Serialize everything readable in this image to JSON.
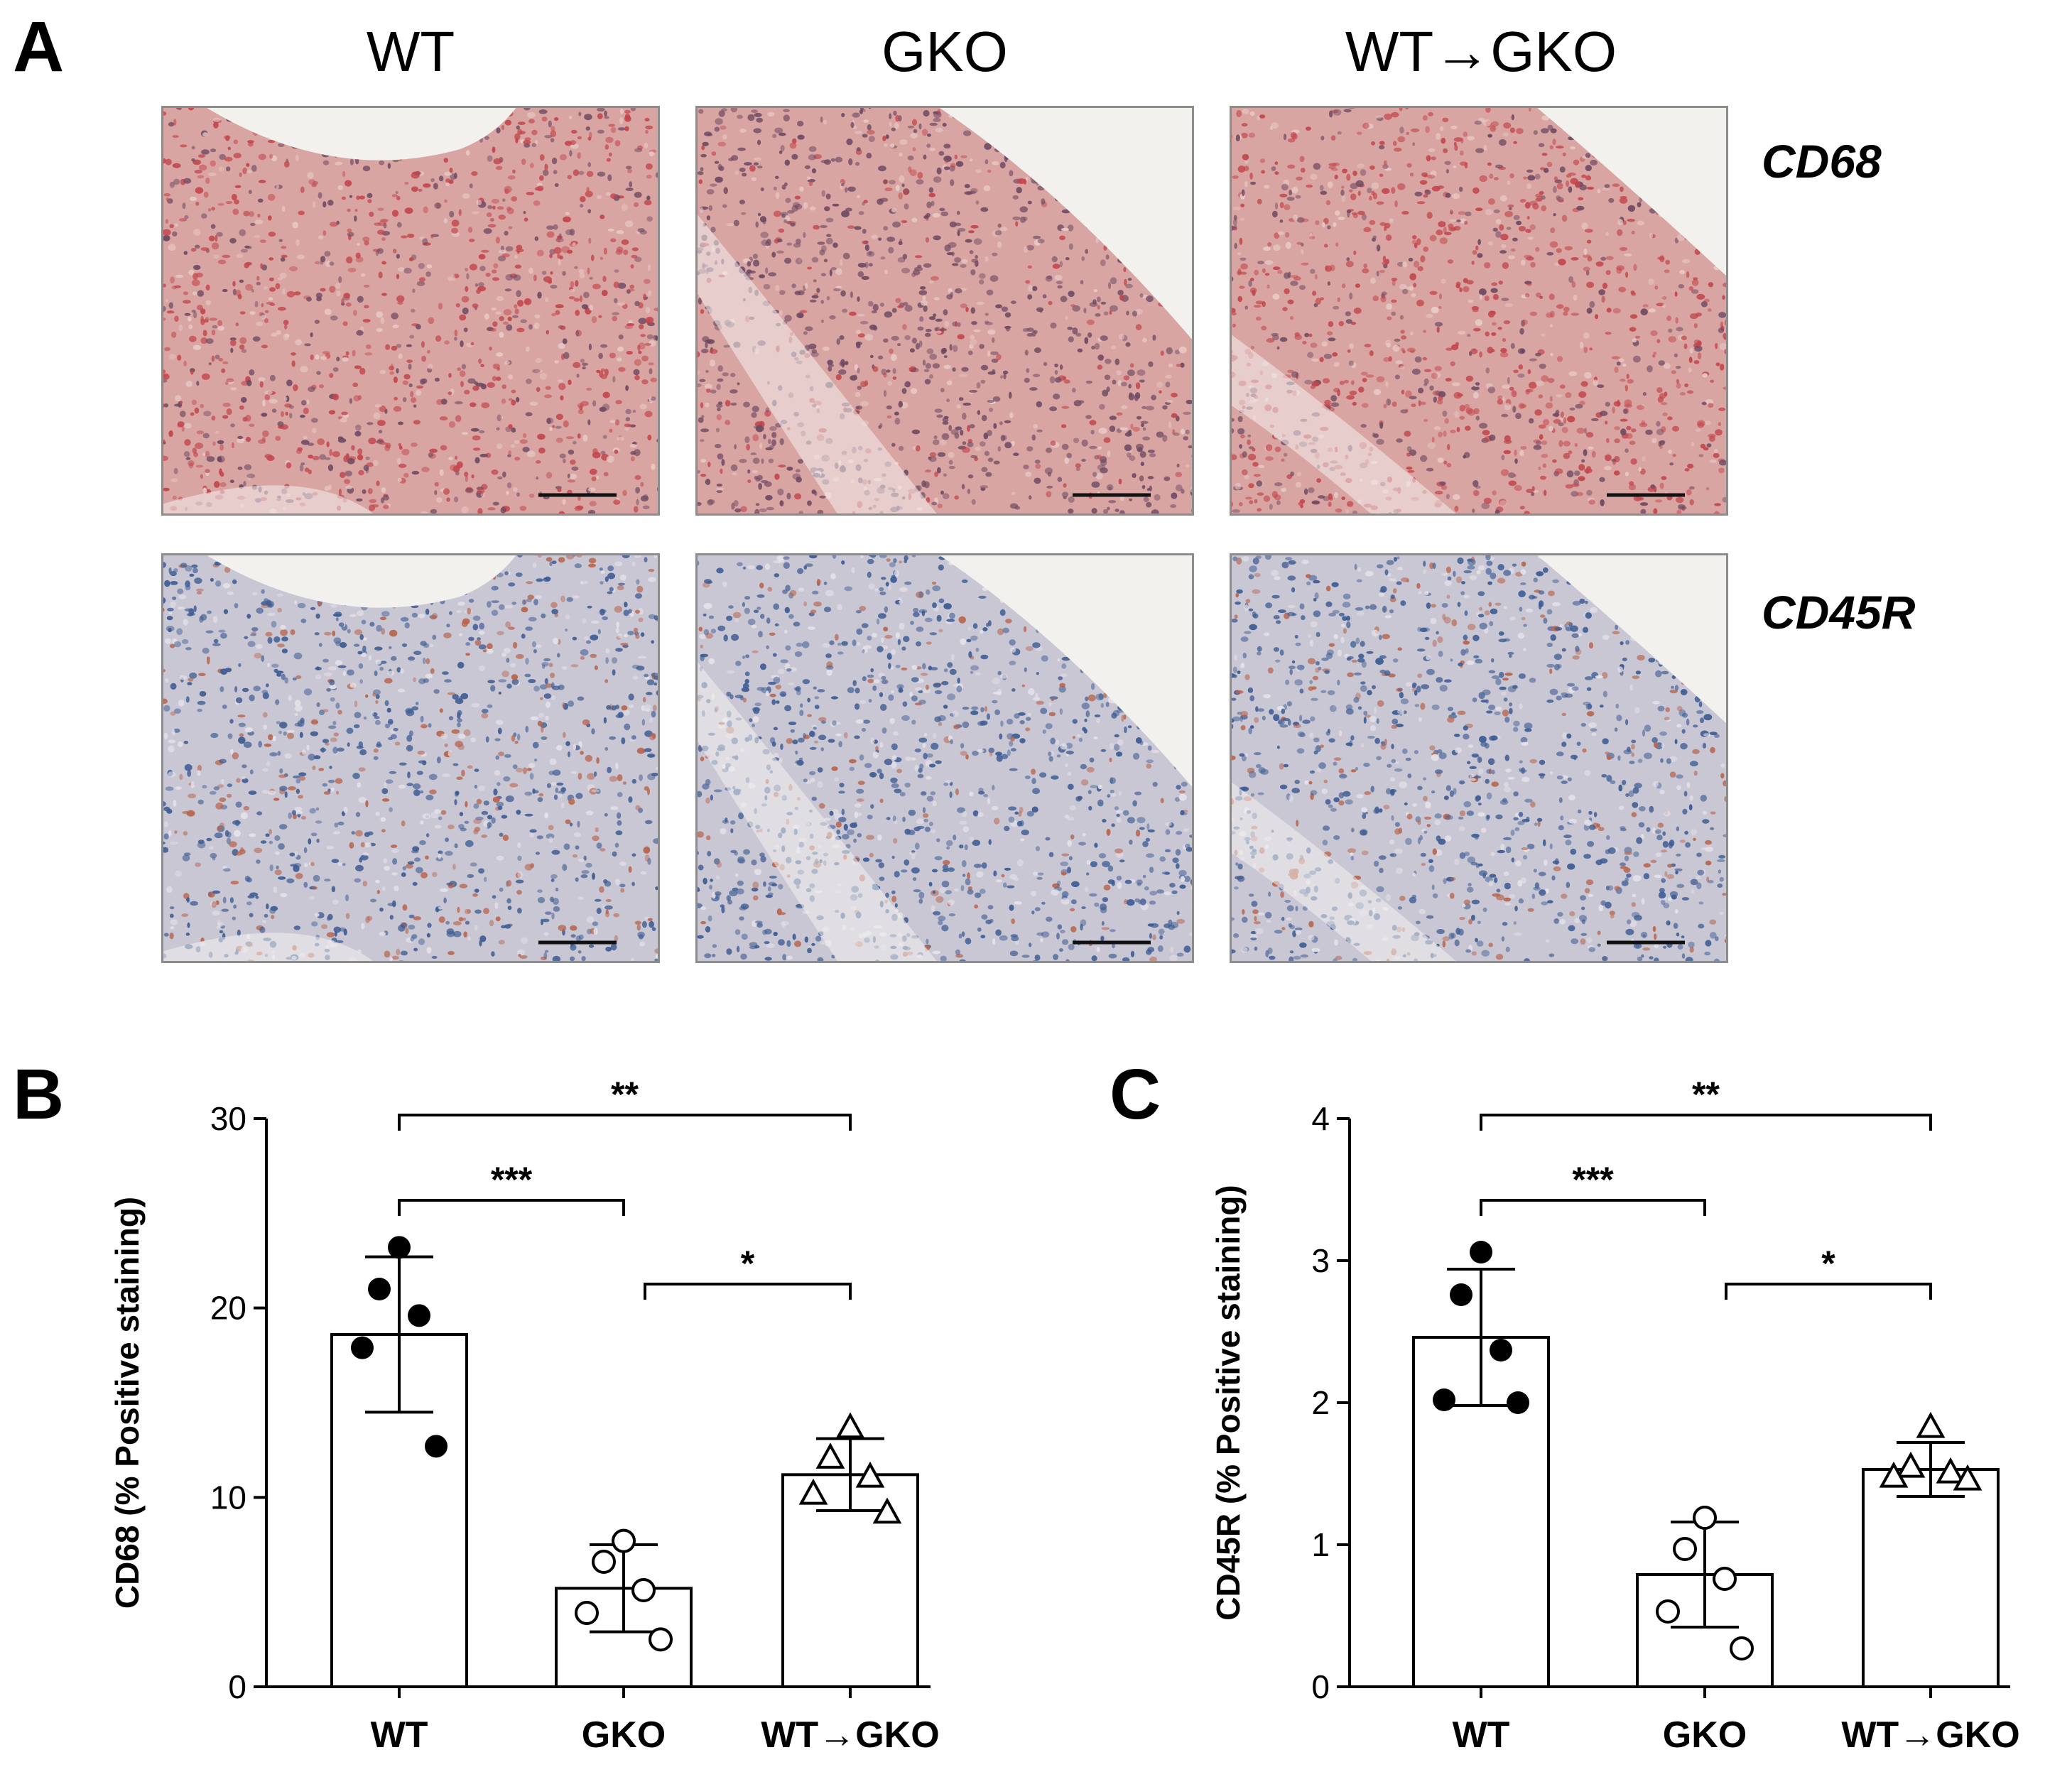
{
  "panels": {
    "a": {
      "letter": "A"
    },
    "b": {
      "letter": "B"
    },
    "c": {
      "letter": "C"
    }
  },
  "micrographs": {
    "columns": [
      "WT",
      "GKO",
      "WT→GKO"
    ],
    "rows": [
      "CD68",
      "CD45R"
    ],
    "colors": {
      "cd68_base": "#d9a5a2",
      "cd68_stain": "#c2474d",
      "cd45r_base": "#c9c7d4",
      "cd45r_nuclei": "#3e5c93",
      "cd45r_stain": "#b8654e",
      "lumen": "#f3f1ee",
      "frame": "#8c8c8c",
      "scalebar": "#111111"
    }
  },
  "chart_data": [
    {
      "type": "bar",
      "categories": [
        "WT",
        "GKO",
        "WT→GKO"
      ],
      "ylabel": "CD68 (% Positive staining)",
      "ylim": [
        0,
        30
      ],
      "yticks": [
        "0",
        "10",
        "20",
        "30"
      ],
      "means": [
        18.6,
        5.2,
        11.2
      ],
      "sd": [
        4.1,
        2.3,
        1.9
      ],
      "points": [
        [
          23.2,
          21.0,
          19.6,
          17.9,
          12.7
        ],
        [
          7.7,
          6.6,
          5.1,
          3.9,
          2.5
        ],
        [
          13.7,
          12.1,
          11.1,
          10.2,
          9.2
        ]
      ],
      "markers": [
        "filled-circle",
        "open-circle",
        "open-triangle"
      ],
      "significance": [
        {
          "from": 0,
          "to": 1,
          "label": "***"
        },
        {
          "from": 1,
          "to": 2,
          "label": "*"
        },
        {
          "from": 0,
          "to": 2,
          "label": "**"
        }
      ]
    },
    {
      "type": "bar",
      "categories": [
        "WT",
        "GKO",
        "WT→GKO"
      ],
      "ylabel": "CD45R (% Positive staining)",
      "ylim": [
        0,
        4
      ],
      "yticks": [
        "0",
        "1",
        "2",
        "3",
        "4"
      ],
      "means": [
        2.46,
        0.79,
        1.53
      ],
      "sd": [
        0.48,
        0.37,
        0.19
      ],
      "points": [
        [
          3.06,
          2.76,
          2.37,
          2.02,
          2.0
        ],
        [
          1.19,
          0.97,
          0.76,
          0.53,
          0.27
        ],
        [
          1.83,
          1.55,
          1.51,
          1.48,
          1.46
        ]
      ],
      "markers": [
        "filled-circle",
        "open-circle",
        "open-triangle"
      ],
      "significance": [
        {
          "from": 0,
          "to": 1,
          "label": "***"
        },
        {
          "from": 1,
          "to": 2,
          "label": "*"
        },
        {
          "from": 0,
          "to": 2,
          "label": "**"
        }
      ]
    }
  ]
}
